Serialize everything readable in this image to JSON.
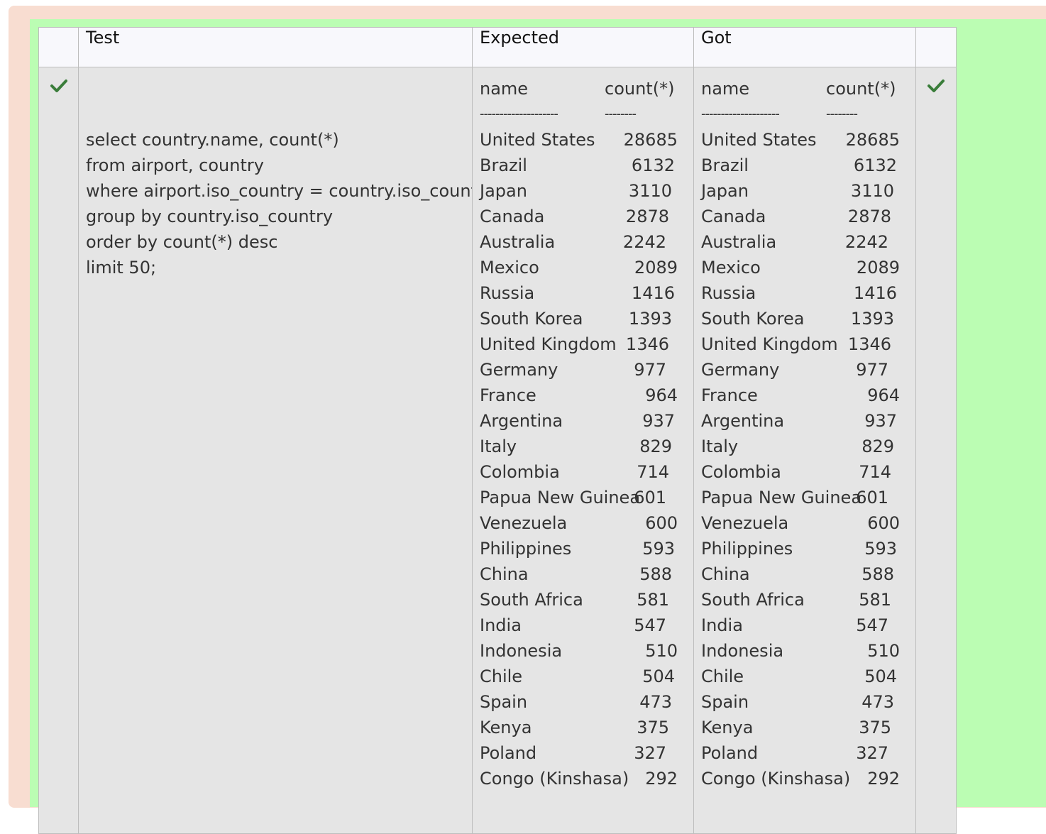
{
  "header": {
    "test": "Test",
    "expected": "Expected",
    "got": "Got"
  },
  "status_icon": "check-icon",
  "colors": {
    "outer_bg": "#f8ddd1",
    "inner_bg": "#bbfdb3",
    "check": "#3a7d3a"
  },
  "test_query": [
    "select country.name, count(*)",
    "from airport, country",
    "where airport.iso_country = country.iso_country",
    "group by country.iso_country",
    "order by count(*) desc",
    "limit 50;"
  ],
  "expected": {
    "col_name": "name",
    "col_count": "count(*)",
    "sep_name": "--------------------",
    "sep_count": "--------",
    "rows": [
      {
        "name": "United States",
        "count": "28685"
      },
      {
        "name": "Brazil",
        "count": "6132"
      },
      {
        "name": "Japan",
        "count": "3110"
      },
      {
        "name": "Canada",
        "count": "2878"
      },
      {
        "name": "Australia",
        "count": "2242"
      },
      {
        "name": "Mexico",
        "count": "2089"
      },
      {
        "name": "Russia",
        "count": "1416"
      },
      {
        "name": "South Korea",
        "count": "1393"
      },
      {
        "name": "United Kingdom",
        "count": "1346"
      },
      {
        "name": "Germany",
        "count": "977"
      },
      {
        "name": "France",
        "count": "964"
      },
      {
        "name": "Argentina",
        "count": "937"
      },
      {
        "name": "Italy",
        "count": "829"
      },
      {
        "name": "Colombia",
        "count": "714"
      },
      {
        "name": "Papua New Guinea",
        "count": "601"
      },
      {
        "name": "Venezuela",
        "count": "600"
      },
      {
        "name": "Philippines",
        "count": "593"
      },
      {
        "name": "China",
        "count": "588"
      },
      {
        "name": "South Africa",
        "count": "581"
      },
      {
        "name": "India",
        "count": "547"
      },
      {
        "name": "Indonesia",
        "count": "510"
      },
      {
        "name": "Chile",
        "count": "504"
      },
      {
        "name": "Spain",
        "count": "473"
      },
      {
        "name": "Kenya",
        "count": "375"
      },
      {
        "name": "Poland",
        "count": "327"
      },
      {
        "name": "Congo (Kinshasa)",
        "count": "292"
      }
    ]
  },
  "got": {
    "col_name": "name",
    "col_count": "count(*)",
    "sep_name": "--------------------",
    "sep_count": "--------",
    "rows": [
      {
        "name": "United States",
        "count": "28685"
      },
      {
        "name": "Brazil",
        "count": "6132"
      },
      {
        "name": "Japan",
        "count": "3110"
      },
      {
        "name": "Canada",
        "count": "2878"
      },
      {
        "name": "Australia",
        "count": "2242"
      },
      {
        "name": "Mexico",
        "count": "2089"
      },
      {
        "name": "Russia",
        "count": "1416"
      },
      {
        "name": "South Korea",
        "count": "1393"
      },
      {
        "name": "United Kingdom",
        "count": "1346"
      },
      {
        "name": "Germany",
        "count": "977"
      },
      {
        "name": "France",
        "count": "964"
      },
      {
        "name": "Argentina",
        "count": "937"
      },
      {
        "name": "Italy",
        "count": "829"
      },
      {
        "name": "Colombia",
        "count": "714"
      },
      {
        "name": "Papua New Guinea",
        "count": "601"
      },
      {
        "name": "Venezuela",
        "count": "600"
      },
      {
        "name": "Philippines",
        "count": "593"
      },
      {
        "name": "China",
        "count": "588"
      },
      {
        "name": "South Africa",
        "count": "581"
      },
      {
        "name": "India",
        "count": "547"
      },
      {
        "name": "Indonesia",
        "count": "510"
      },
      {
        "name": "Chile",
        "count": "504"
      },
      {
        "name": "Spain",
        "count": "473"
      },
      {
        "name": "Kenya",
        "count": "375"
      },
      {
        "name": "Poland",
        "count": "327"
      },
      {
        "name": "Congo (Kinshasa)",
        "count": "292"
      }
    ]
  }
}
